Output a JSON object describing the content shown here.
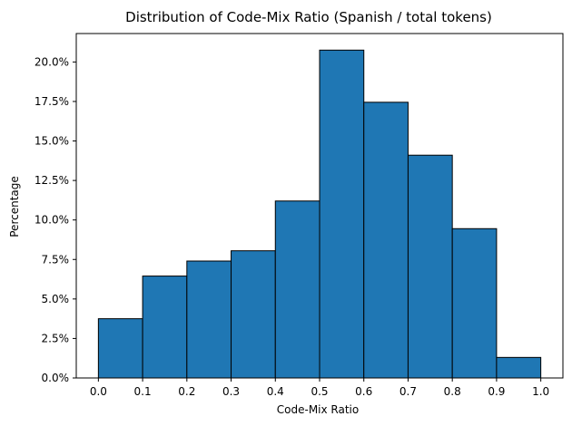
{
  "chart_data": {
    "type": "bar",
    "title": "Distribution of Code-Mix Ratio (Spanish / total tokens)",
    "xlabel": "Code-Mix Ratio",
    "ylabel": "Percentage",
    "bins": [
      [
        0.0,
        0.1
      ],
      [
        0.1,
        0.2
      ],
      [
        0.2,
        0.3
      ],
      [
        0.3,
        0.4
      ],
      [
        0.4,
        0.5
      ],
      [
        0.5,
        0.6
      ],
      [
        0.6,
        0.7
      ],
      [
        0.7,
        0.8
      ],
      [
        0.8,
        0.9
      ],
      [
        0.9,
        1.0
      ]
    ],
    "values": [
      3.75,
      6.45,
      7.4,
      8.05,
      11.2,
      20.75,
      17.45,
      14.1,
      9.45,
      1.3
    ],
    "xlim": [
      -0.05,
      1.05
    ],
    "ylim": [
      0,
      21.8
    ],
    "x_ticks": [
      0.0,
      0.1,
      0.2,
      0.3,
      0.4,
      0.5,
      0.6,
      0.7,
      0.8,
      0.9,
      1.0
    ],
    "x_tick_labels": [
      "0.0",
      "0.1",
      "0.2",
      "0.3",
      "0.4",
      "0.5",
      "0.6",
      "0.7",
      "0.8",
      "0.9",
      "1.0"
    ],
    "y_ticks": [
      0,
      2.5,
      5,
      7.5,
      10,
      12.5,
      15,
      17.5,
      20
    ],
    "y_tick_labels": [
      "0.0%",
      "2.5%",
      "5.0%",
      "7.5%",
      "10.0%",
      "12.5%",
      "15.0%",
      "17.5%",
      "20.0%"
    ],
    "grid": false,
    "legend": "none",
    "colors": {
      "bar_fill": "#1f77b4",
      "bar_edge": "#000000",
      "axis": "#000000",
      "background": "#ffffff"
    }
  }
}
